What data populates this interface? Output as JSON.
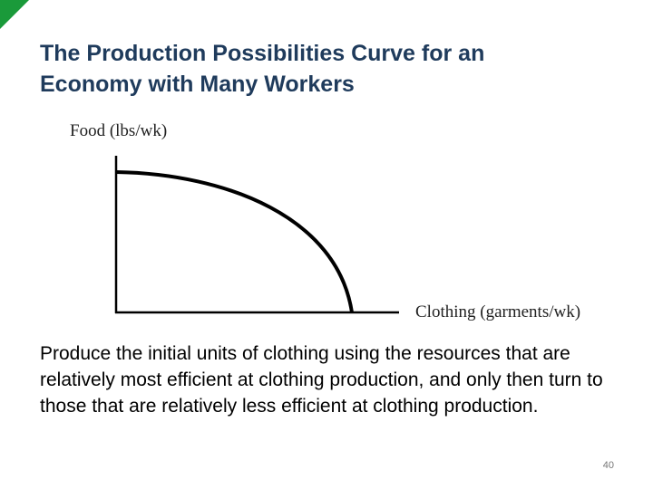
{
  "title": "The Production Possibilities Curve for an Economy with Many Workers",
  "diagram": {
    "y_axis_label": "Food (lbs/wk)",
    "x_axis_label": "Clothing (garments/wk)"
  },
  "body": "Produce the initial units of clothing using the resources that are relatively most efficient at clothing production, and only then turn to those that are relatively less efficient at clothing production.",
  "page_number": "40"
}
